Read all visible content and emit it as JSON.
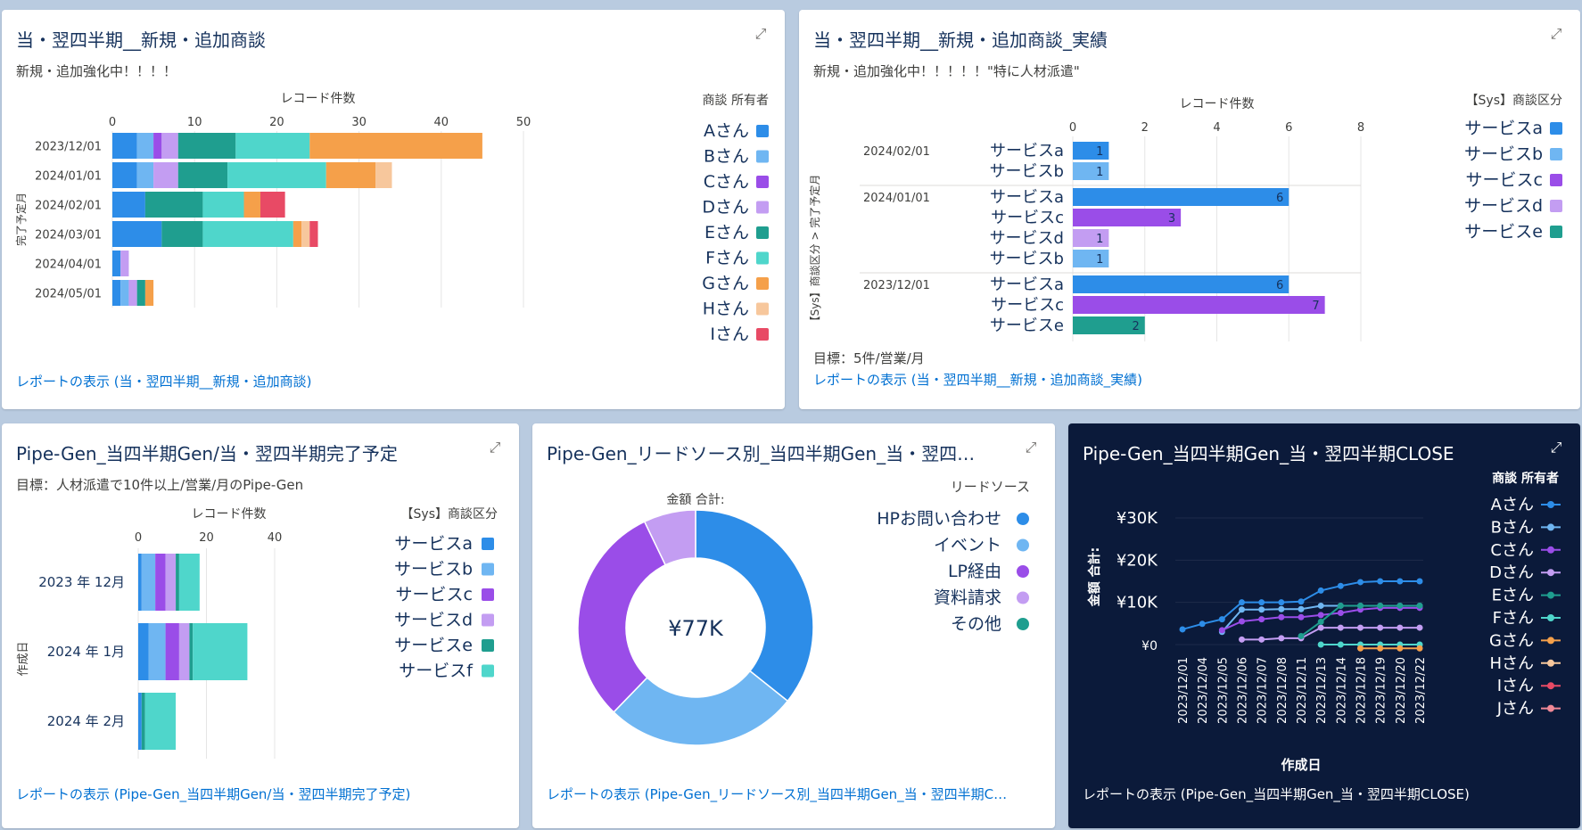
{
  "panels": {
    "p1": {
      "title": "当・翌四半期__新規・追加商談",
      "subtitle": "新規・追加強化中！！！！",
      "link": "レポートの表示 (当・翌四半期__新規・追加商談)"
    },
    "p2": {
      "title": "当・翌四半期__新規・追加商談_実績",
      "subtitle": "新規・追加強化中！！！！！\"特に人材派遣\"",
      "note": "目標：5件/営業/月",
      "link": "レポートの表示 (当・翌四半期__新規・追加商談_実績)"
    },
    "p3": {
      "title": "Pipe-Gen_当四半期Gen/当・翌四半期完了予定",
      "subtitle": "目標：人材派遣で10件以上/営業/月のPipe-Gen",
      "link": "レポートの表示 (Pipe-Gen_当四半期Gen/当・翌四半期完了予定)"
    },
    "p4": {
      "title": "Pipe-Gen_リードソース別_当四半期Gen_当・翌四…",
      "link": "レポートの表示 (Pipe-Gen_リードソース別_当四半期Gen_当・翌四半期C…"
    },
    "p5": {
      "title": "Pipe-Gen_当四半期Gen_当・翌四半期CLOSE",
      "link": "レポートの表示 (Pipe-Gen_当四半期Gen_当・翌四半期CLOSE)"
    }
  },
  "icons": {
    "expand": "expand-icon"
  },
  "colors": {
    "serviceA": "#2d8de8",
    "serviceB": "#6fb6f2",
    "serviceC": "#9a4de8",
    "serviceD": "#c39df2",
    "serviceE": "#1f9e8f",
    "serviceF": "#4fd6cb",
    "G": "#f5a04a",
    "H": "#f7c79c",
    "I": "#e84a65",
    "J": "#f08896",
    "link": "#0070d2",
    "dark_bg": "#0b1a3a"
  },
  "chart_data": [
    {
      "id": "c1",
      "type": "bar",
      "orientation": "horizontal",
      "stacked": true,
      "xlabel": "レコード件数",
      "ylabel": "完了予定月",
      "xlim": [
        0,
        50
      ],
      "xticks": [
        0,
        10,
        20,
        30,
        40,
        50
      ],
      "legend_title": "商談 所有者",
      "categories": [
        "2023/12/01",
        "2024/01/01",
        "2024/02/01",
        "2024/03/01",
        "2024/04/01",
        "2024/05/01"
      ],
      "series": [
        {
          "name": "Aさん",
          "color": "#2d8de8",
          "values": [
            3,
            3,
            4,
            6,
            1,
            1
          ]
        },
        {
          "name": "Bさん",
          "color": "#6fb6f2",
          "values": [
            2,
            2,
            0,
            0,
            0,
            1
          ]
        },
        {
          "name": "Cさん",
          "color": "#9a4de8",
          "values": [
            1,
            0,
            0,
            0,
            0,
            0
          ]
        },
        {
          "name": "Dさん",
          "color": "#c39df2",
          "values": [
            2,
            3,
            0,
            0,
            1,
            1
          ]
        },
        {
          "name": "Eさん",
          "color": "#1f9e8f",
          "values": [
            7,
            6,
            7,
            5,
            0,
            1
          ]
        },
        {
          "name": "Fさん",
          "color": "#4fd6cb",
          "values": [
            9,
            12,
            5,
            11,
            0,
            0
          ]
        },
        {
          "name": "Gさん",
          "color": "#f5a04a",
          "values": [
            21,
            6,
            2,
            1,
            0,
            1
          ]
        },
        {
          "name": "Hさん",
          "color": "#f7c79c",
          "values": [
            0,
            2,
            0,
            1,
            0,
            0
          ]
        },
        {
          "name": "Iさん",
          "color": "#e84a65",
          "values": [
            0,
            0,
            3,
            1,
            0,
            0
          ]
        }
      ],
      "extra_segments": [
        {
          "category": "2024/02/01",
          "order": [
            "I",
            "A",
            "H",
            "light-green",
            "B",
            "D",
            "E",
            "F",
            "G",
            "light-green"
          ],
          "note": "mixed"
        }
      ]
    },
    {
      "id": "c2",
      "type": "bar",
      "orientation": "horizontal",
      "xlabel": "レコード件数",
      "ylabel": "【Sys】商談区分 > 完了予定月",
      "xlim": [
        0,
        8
      ],
      "xticks": [
        0,
        2,
        4,
        6,
        8
      ],
      "legend_title": "【Sys】商談区分",
      "legend": [
        "サービスa",
        "サービスb",
        "サービスc",
        "サービスd",
        "サービスe"
      ],
      "groups": [
        {
          "label": "2024/02/01",
          "rows": [
            {
              "name": "サービスa",
              "value": 1
            },
            {
              "name": "サービスb",
              "value": 1
            }
          ]
        },
        {
          "label": "2024/01/01",
          "rows": [
            {
              "name": "サービスa",
              "value": 6
            },
            {
              "name": "サービスc",
              "value": 3
            },
            {
              "name": "サービスd",
              "value": 1
            },
            {
              "name": "サービスb",
              "value": 1
            }
          ]
        },
        {
          "label": "2023/12/01",
          "rows": [
            {
              "name": "サービスa",
              "value": 6
            },
            {
              "name": "サービスc",
              "value": 7
            },
            {
              "name": "サービスe",
              "value": 2
            }
          ]
        }
      ]
    },
    {
      "id": "c3",
      "type": "bar",
      "orientation": "horizontal",
      "stacked": true,
      "xlabel": "レコード件数",
      "ylabel": "作成日",
      "xlim": [
        0,
        40
      ],
      "xticks": [
        0,
        20,
        40
      ],
      "legend_title": "【Sys】商談区分",
      "categories": [
        "2023 年 12月",
        "2024 年 1月",
        "2024 年 2月"
      ],
      "series": [
        {
          "name": "サービスa",
          "color": "#2d8de8",
          "values": [
            1,
            3,
            1
          ]
        },
        {
          "name": "サービスb",
          "color": "#6fb6f2",
          "values": [
            4,
            5,
            0
          ]
        },
        {
          "name": "サービスc",
          "color": "#9a4de8",
          "values": [
            3,
            4,
            0
          ]
        },
        {
          "name": "サービスd",
          "color": "#c39df2",
          "values": [
            3,
            3,
            0
          ]
        },
        {
          "name": "サービスe",
          "color": "#1f9e8f",
          "values": [
            1,
            1,
            1
          ]
        },
        {
          "name": "サービスf",
          "color": "#4fd6cb",
          "values": [
            6,
            16,
            9
          ]
        }
      ]
    },
    {
      "id": "c4",
      "type": "pie",
      "donut": true,
      "title": "金額 合計:",
      "center_label": "¥77K",
      "legend_title": "リードソース",
      "slices": [
        {
          "name": "HPお問い合わせ",
          "color": "#2d8de8",
          "value": 35
        },
        {
          "name": "イベント",
          "color": "#6fb6f2",
          "value": 26
        },
        {
          "name": "LP経由",
          "color": "#9a4de8",
          "value": 30
        },
        {
          "name": "資料請求",
          "color": "#c39df2",
          "value": 7
        },
        {
          "name": "その他",
          "color": "#1f9e8f",
          "value": 0
        }
      ]
    },
    {
      "id": "c5",
      "type": "line",
      "xlabel": "作成日",
      "ylabel": "金額 合計:",
      "ylim": [
        0,
        30000
      ],
      "yticks": [
        {
          "v": 0,
          "label": "¥0"
        },
        {
          "v": 10000,
          "label": "¥10K"
        },
        {
          "v": 20000,
          "label": "¥20K"
        },
        {
          "v": 30000,
          "label": "¥30K"
        }
      ],
      "legend_title": "商談 所有者",
      "x": [
        "2023/12/01",
        "2023/12/04",
        "2023/12/05",
        "2023/12/06",
        "2023/12/07",
        "2023/12/08",
        "2023/12/11",
        "2023/12/13",
        "2023/12/14",
        "2023/12/18",
        "2023/12/19",
        "2023/12/20",
        "2023/12/22"
      ],
      "series": [
        {
          "name": "Aさん",
          "color": "#2d8de8",
          "values": [
            3600,
            4900,
            6000,
            10000,
            10000,
            10000,
            10200,
            12800,
            13900,
            14800,
            15000,
            15000,
            15000
          ]
        },
        {
          "name": "Bさん",
          "color": "#6fb6f2",
          "values": [
            null,
            null,
            3000,
            8300,
            8300,
            8400,
            8400,
            9200,
            9200,
            9200,
            9200,
            9200,
            9200
          ]
        },
        {
          "name": "Cさん",
          "color": "#9a4de8",
          "values": [
            null,
            null,
            3400,
            5500,
            6000,
            6500,
            6500,
            7000,
            7500,
            8300,
            8700,
            8700,
            8700
          ]
        },
        {
          "name": "Dさん",
          "color": "#c39df2",
          "values": [
            null,
            null,
            null,
            1200,
            1200,
            1500,
            1500,
            4000,
            4000,
            4000,
            4000,
            4000,
            4000
          ]
        },
        {
          "name": "Eさん",
          "color": "#1f9e8f",
          "values": [
            null,
            null,
            null,
            null,
            null,
            null,
            2000,
            5400,
            9200,
            9200,
            9200,
            9200,
            9200
          ]
        },
        {
          "name": "Fさん",
          "color": "#4fd6cb",
          "values": [
            null,
            null,
            null,
            null,
            null,
            null,
            null,
            0,
            0,
            0,
            0,
            0,
            0
          ]
        },
        {
          "name": "Gさん",
          "color": "#f5a04a",
          "values": [
            null,
            null,
            null,
            null,
            null,
            null,
            null,
            null,
            null,
            -900,
            -900,
            -900,
            -900
          ]
        },
        {
          "name": "Hさん",
          "color": "#f7c79c",
          "values": [
            null,
            null,
            null,
            null,
            null,
            null,
            null,
            null,
            null,
            null,
            null,
            null,
            null
          ]
        },
        {
          "name": "Iさん",
          "color": "#e84a65",
          "values": [
            null,
            null,
            null,
            null,
            null,
            null,
            null,
            null,
            null,
            null,
            null,
            null,
            null
          ]
        },
        {
          "name": "Jさん",
          "color": "#f08896",
          "values": [
            null,
            null,
            null,
            null,
            null,
            null,
            null,
            null,
            null,
            null,
            null,
            null,
            null
          ]
        }
      ]
    }
  ]
}
